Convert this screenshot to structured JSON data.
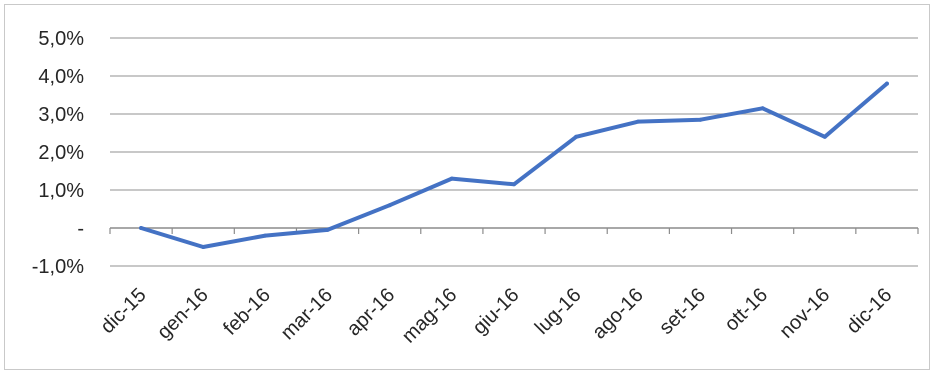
{
  "chart_data": {
    "type": "line",
    "title": "",
    "xlabel": "",
    "ylabel": "",
    "categories": [
      "dic-15",
      "gen-16",
      "feb-16",
      "mar-16",
      "apr-16",
      "mag-16",
      "giu-16",
      "lug-16",
      "ago-16",
      "set-16",
      "ott-16",
      "nov-16",
      "dic-16"
    ],
    "series": [
      {
        "values": [
          0.0,
          -0.5,
          -0.2,
          -0.05,
          0.6,
          1.3,
          1.15,
          2.4,
          2.8,
          2.85,
          3.15,
          2.4,
          3.8
        ]
      }
    ],
    "ylim": [
      -1,
      5
    ],
    "yticks": [
      -1,
      0,
      1,
      2,
      3,
      4,
      5
    ],
    "ytick_labels": [
      "-1,0%",
      "-",
      "1,0%",
      "2,0%",
      "3,0%",
      "4,0%",
      "5,0%"
    ],
    "grid": true,
    "legend": "none",
    "line_color": "#4472c4",
    "grid_color": "#a6a6a6"
  }
}
